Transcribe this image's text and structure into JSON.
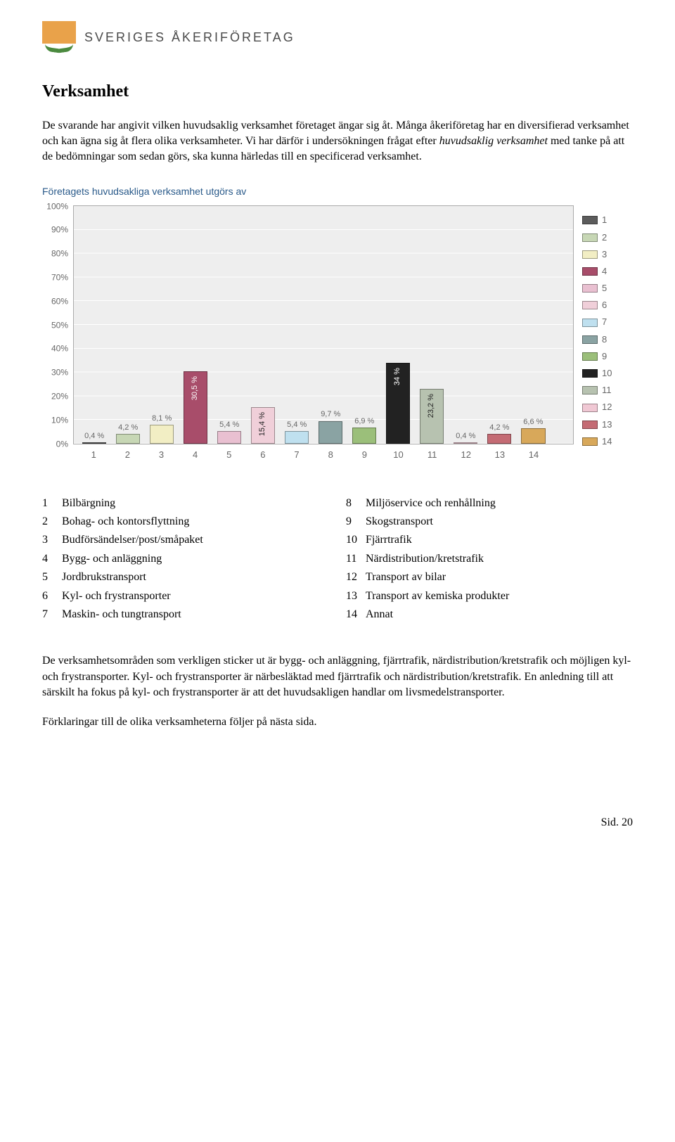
{
  "logo": {
    "text": "SVERIGES ÅKERIFÖRETAG",
    "orange": "#e9a24a",
    "green": "#4b8a3f",
    "text_color": "#4a4a4a"
  },
  "heading": "Verksamhet",
  "intro1": "De svarande har angivit vilken huvudsaklig verksamhet företaget ängar sig åt. Många åkeriföretag har en diversifierad verksamhet och kan ägna sig åt flera olika verksamheter. Vi har därför i undersökningen frågat efter ",
  "intro_italic": "huvudsaklig verksamhet",
  "intro2": " med tanke på att de bedömningar som sedan görs, ska kunna härledas till en specificerad verksamhet.",
  "chart": {
    "title": "Företagets huvudsakliga verksamhet utgörs av",
    "title_color": "#2a5a8a",
    "plot_bg": "#eeeeee",
    "grid_color": "#ffffff",
    "axis_text_color": "#666666",
    "ylim": [
      0,
      100
    ],
    "ytick_step": 10,
    "yticks": [
      "0%",
      "10%",
      "20%",
      "30%",
      "40%",
      "50%",
      "60%",
      "70%",
      "80%",
      "90%",
      "100%"
    ],
    "categories": [
      "1",
      "2",
      "3",
      "4",
      "5",
      "6",
      "7",
      "8",
      "9",
      "10",
      "11",
      "12",
      "13",
      "14"
    ],
    "series": [
      {
        "value": 0.4,
        "label": "0,4 %",
        "color": "#5c5c5c",
        "label_pos": "above"
      },
      {
        "value": 4.2,
        "label": "4,2 %",
        "color": "#c7d7b5",
        "label_pos": "above"
      },
      {
        "value": 8.1,
        "label": "8,1 %",
        "color": "#f2eec4",
        "label_pos": "above"
      },
      {
        "value": 30.5,
        "label": "30,5 %",
        "color": "#a84d6a",
        "label_pos": "inside-light"
      },
      {
        "value": 5.4,
        "label": "5,4 %",
        "color": "#e9c0d1",
        "label_pos": "above"
      },
      {
        "value": 15.4,
        "label": "15,4 %",
        "color": "#f0cfd9",
        "label_pos": "inside-dark"
      },
      {
        "value": 5.4,
        "label": "5,4 %",
        "color": "#bfe0ef",
        "label_pos": "above"
      },
      {
        "value": 9.7,
        "label": "9,7 %",
        "color": "#8aa3a3",
        "label_pos": "above"
      },
      {
        "value": 6.9,
        "label": "6,9 %",
        "color": "#9bbf7a",
        "label_pos": "above"
      },
      {
        "value": 34.0,
        "label": "34 %",
        "color": "#222222",
        "label_pos": "inside-light"
      },
      {
        "value": 23.2,
        "label": "23,2 %",
        "color": "#b7c2b0",
        "label_pos": "inside-dark"
      },
      {
        "value": 0.4,
        "label": "0,4 %",
        "color": "#f0c8d4",
        "label_pos": "above"
      },
      {
        "value": 4.2,
        "label": "4,2 %",
        "color": "#c46b74",
        "label_pos": "above"
      },
      {
        "value": 6.6,
        "label": "6,6 %",
        "color": "#d8a85a",
        "label_pos": "above"
      }
    ],
    "legend_colors": [
      "#5c5c5c",
      "#c7d7b5",
      "#f2eec4",
      "#a84d6a",
      "#e9c0d1",
      "#f0cfd9",
      "#bfe0ef",
      "#8aa3a3",
      "#9bbf7a",
      "#222222",
      "#b7c2b0",
      "#f0c8d4",
      "#c46b74",
      "#d8a85a"
    ]
  },
  "key_left": [
    {
      "n": "1",
      "t": "Bilbärgning"
    },
    {
      "n": "2",
      "t": "Bohag- och kontorsflyttning"
    },
    {
      "n": "3",
      "t": "Budförsändelser/post/småpaket"
    },
    {
      "n": "4",
      "t": "Bygg- och anläggning"
    },
    {
      "n": "5",
      "t": "Jordbrukstransport"
    },
    {
      "n": "6",
      "t": "Kyl- och frystransporter"
    },
    {
      "n": "7",
      "t": "Maskin- och tungtransport"
    }
  ],
  "key_right": [
    {
      "n": "8",
      "t": "Miljöservice och renhållning"
    },
    {
      "n": "9",
      "t": "Skogstransport"
    },
    {
      "n": "10",
      "t": "Fjärrtrafik"
    },
    {
      "n": "11",
      "t": "Närdistribution/kretstrafik"
    },
    {
      "n": "12",
      "t": "Transport av bilar"
    },
    {
      "n": "13",
      "t": "Transport av kemiska produkter"
    },
    {
      "n": "14",
      "t": "Annat"
    }
  ],
  "body1": "De verksamhetsområden som verkligen sticker ut är bygg- och anläggning, fjärrtrafik, närdistribution/kretstrafik och möjligen kyl- och frystransporter. Kyl- och frystransporter är närbesläktad med fjärrtrafik och närdistribution/kretstrafik. En anledning till att särskilt ha fokus på kyl- och frystransporter är att det huvudsakligen handlar om livsmedelstransporter.",
  "body2": "Förklaringar till de olika verksamheterna följer på nästa sida.",
  "page_label": "Sid. 20"
}
